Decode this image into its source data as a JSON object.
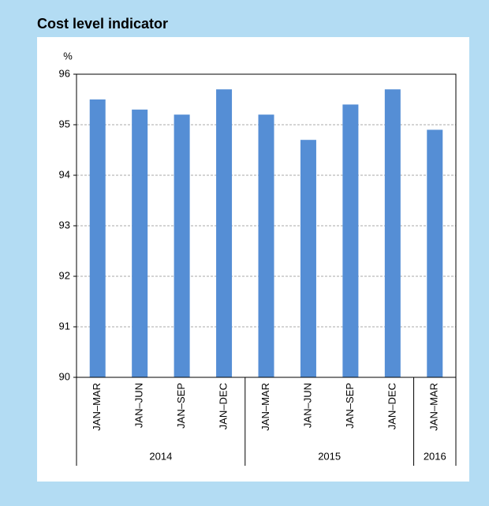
{
  "chart_data": {
    "type": "bar",
    "title": "Cost level indicator",
    "y_label": "%",
    "groups": [
      {
        "label": "2014",
        "categories": [
          "JAN–MAR",
          "JAN–JUN",
          "JAN–SEP",
          "JAN–DEC"
        ]
      },
      {
        "label": "2015",
        "categories": [
          "JAN–MAR",
          "JAN–JUN",
          "JAN–SEP",
          "JAN–DEC"
        ]
      },
      {
        "label": "2016",
        "categories": [
          "JAN–MAR"
        ]
      }
    ],
    "values": [
      95.5,
      95.3,
      95.2,
      95.7,
      95.2,
      94.7,
      95.4,
      95.7,
      94.9
    ],
    "color": "#558ed5",
    "ylim": [
      90,
      96
    ],
    "yticks": [
      90,
      91,
      92,
      93,
      94,
      95,
      96
    ],
    "grid": true
  }
}
